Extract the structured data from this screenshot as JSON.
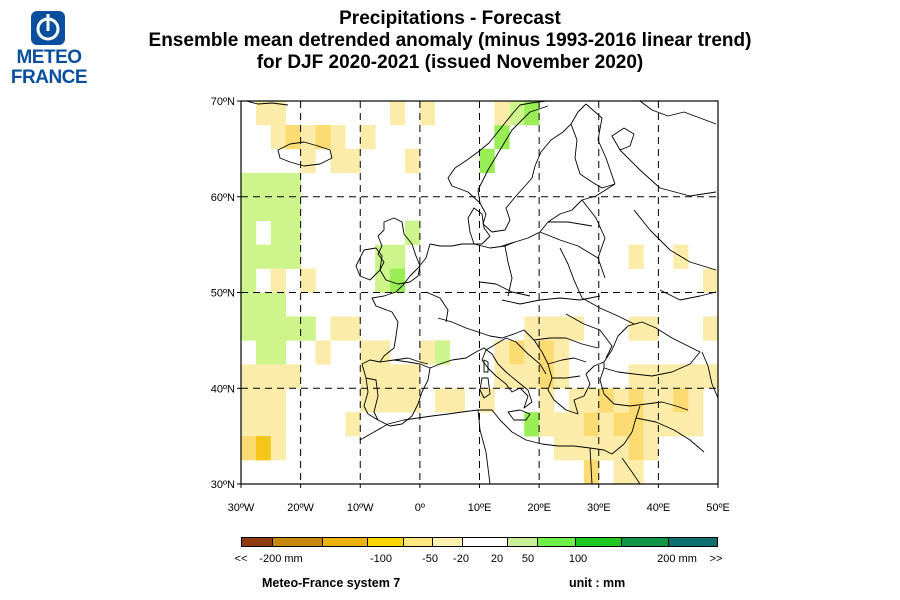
{
  "logo": {
    "line1": "METEO",
    "line2": "FRANCE",
    "mark": "meteo-france-emblem"
  },
  "title": {
    "line1": "Precipitations   -   Forecast",
    "line2": "Ensemble mean detrended anomaly (minus 1993-2016 linear trend)",
    "line3": "for DJF 2020-2021   (issued November 2020)"
  },
  "map": {
    "lat_labels": [
      "70ºN",
      "60ºN",
      "50ºN",
      "40ºN",
      "30ºN"
    ],
    "lon_labels": [
      "30ºW",
      "20ºW",
      "10ºW",
      "0º",
      "10ºE",
      "20ºE",
      "30ºE",
      "40ºE",
      "50ºE"
    ],
    "lon_range": [
      -30,
      50
    ],
    "lat_range": [
      30,
      70
    ],
    "grid": "dashed every 10 degrees"
  },
  "colorbar": {
    "colors": [
      "#8c3a0e",
      "#c8880f",
      "#ecb20f",
      "#ffd700",
      "#ffe680",
      "#fff2b0",
      "#ffffff",
      "#c8f096",
      "#6ff04a",
      "#1fc81f",
      "#0f9646",
      "#0f6e6e"
    ],
    "labels": [
      "<<",
      "-200 mm",
      "-100",
      "-50",
      "-20",
      "20",
      "50",
      "100",
      "200 mm",
      ">>"
    ]
  },
  "footer": {
    "model": "Meteo-France system 7",
    "unit": "unit :  mm"
  },
  "anomaly_colors": {
    "light_yellow": "#fcecaa",
    "yellow": "#fcdc72",
    "orange": "#f5c518",
    "light_green": "#cdf58c",
    "green": "#99ee55"
  }
}
